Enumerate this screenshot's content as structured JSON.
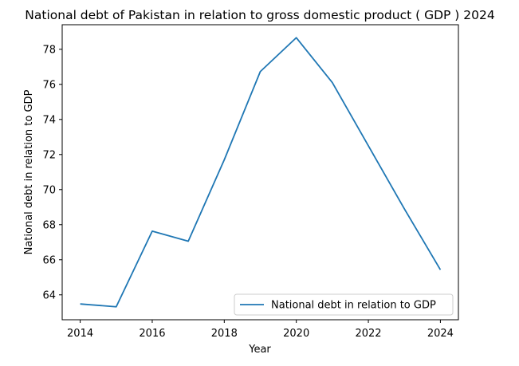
{
  "chart_data": {
    "type": "line",
    "title": "National debt of Pakistan in relation to gross domestic product ( GDP ) 2024",
    "xlabel": "Year",
    "ylabel": "National debt in relation to GDP",
    "x": [
      2014,
      2015,
      2016,
      2017,
      2018,
      2019,
      2020,
      2021,
      2022,
      2023,
      2024
    ],
    "series": [
      {
        "name": "National debt in relation to GDP",
        "values": [
          63.48,
          63.32,
          67.63,
          67.06,
          71.7,
          76.73,
          78.66,
          76.1,
          72.5,
          68.9,
          65.43
        ],
        "color": "#1f77b4"
      }
    ],
    "xlim": [
      2013.5,
      2024.5
    ],
    "ylim": [
      62.58,
      79.4
    ],
    "x_ticks": [
      2014,
      2016,
      2018,
      2020,
      2022,
      2024
    ],
    "y_ticks": [
      64,
      66,
      68,
      70,
      72,
      74,
      76,
      78
    ],
    "legend_position": "lower-right",
    "grid": false
  }
}
